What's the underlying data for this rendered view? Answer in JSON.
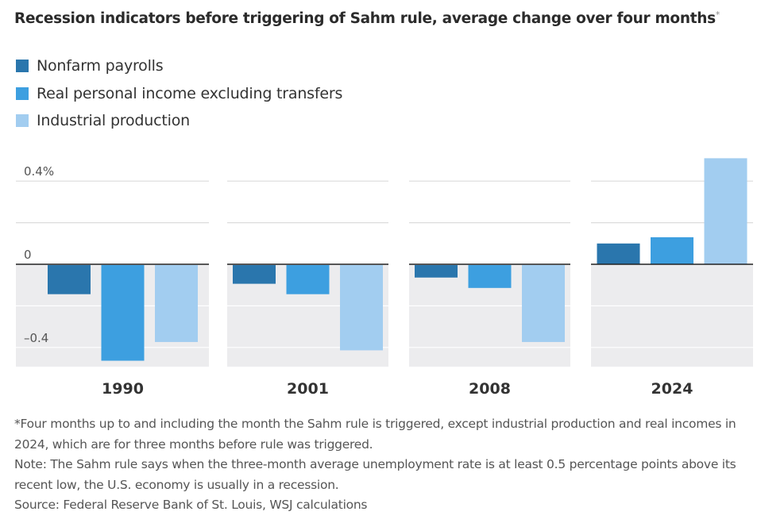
{
  "title": "Recession indicators before triggering of Sahm rule, average change over four months",
  "title_mark": "*",
  "colors": {
    "nonfarm": "#2a76ad",
    "income": "#3d9fe0",
    "industrial": "#a2cdf0",
    "panel_bg": "#ececee",
    "gridline": "#ffffff",
    "zeroline": "#222222"
  },
  "chart_data": {
    "type": "bar",
    "categories": [
      "1990",
      "2001",
      "2008",
      "2024"
    ],
    "series": [
      {
        "name": "Nonfarm payrolls",
        "values": [
          -0.14,
          -0.09,
          -0.06,
          0.1
        ]
      },
      {
        "name": "Real personal income excluding transfers",
        "values": [
          -0.46,
          -0.14,
          -0.11,
          0.13
        ]
      },
      {
        "name": "Industrial production",
        "values": [
          -0.37,
          -0.41,
          -0.37,
          0.51
        ]
      }
    ],
    "yticks": [
      {
        "value": 0.4,
        "label": "0.4%"
      },
      {
        "value": 0,
        "label": "0"
      },
      {
        "value": -0.4,
        "label": "–0.4"
      }
    ],
    "ylim": [
      -0.5,
      0.5
    ],
    "legend_position": "top-left",
    "grid": true
  },
  "notes": {
    "footnote": "*Four months up to and including the month the Sahm rule is triggered, except industrial production and real incomes in 2024, which are for three months before rule was triggered.",
    "note": "Note: The Sahm rule says when the three-month average unemployment rate is at least 0.5 percentage points above its recent low, the U.S. economy is usually in a recession.",
    "source": "Source: Federal Reserve Bank of St. Louis, WSJ calculations"
  }
}
